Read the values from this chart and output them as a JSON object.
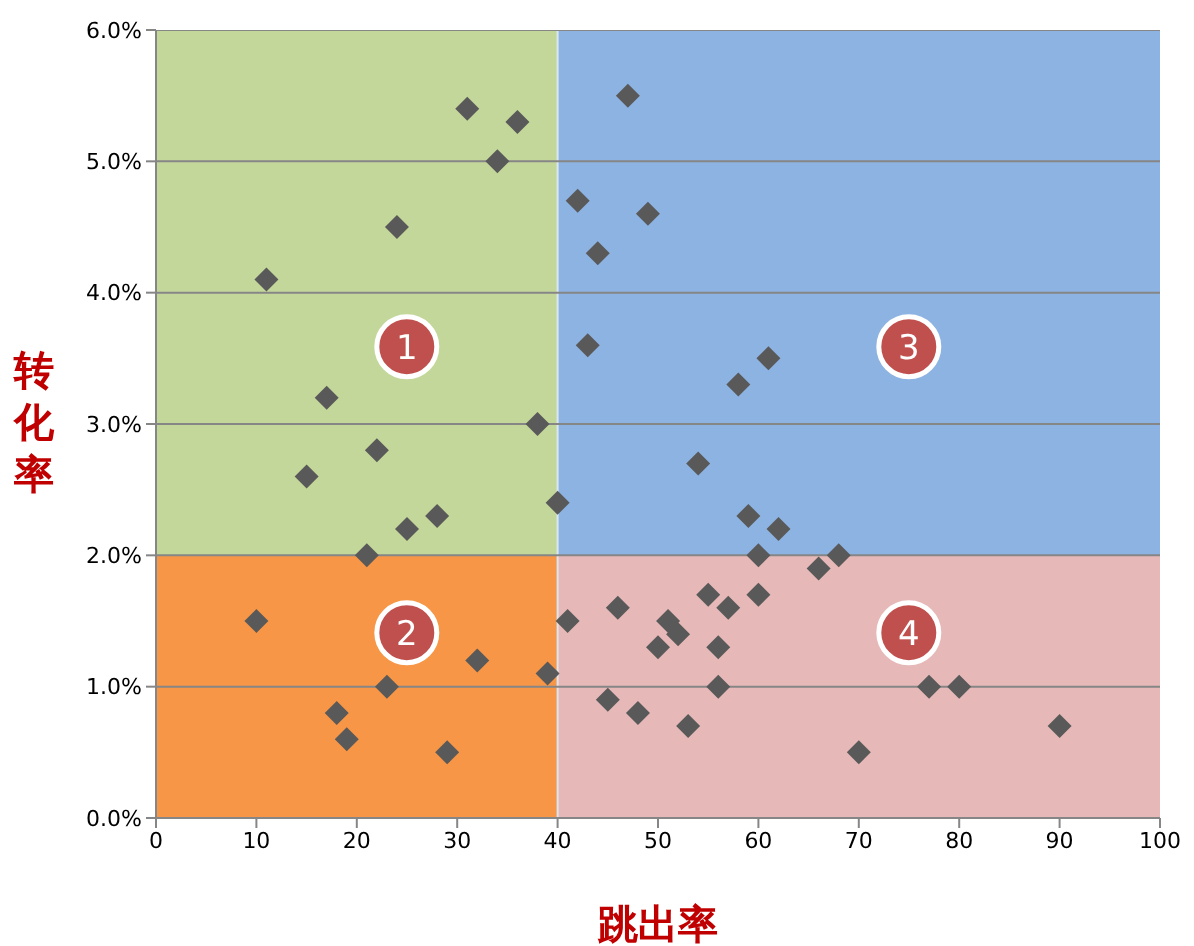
{
  "chart_data": {
    "type": "scatter",
    "xlabel": "跳出率",
    "ylabel": "转化率",
    "xlim": [
      0,
      100
    ],
    "xticks": [
      0,
      10,
      20,
      30,
      40,
      50,
      60,
      70,
      80,
      90,
      100
    ],
    "ylim": [
      0,
      6
    ],
    "yticks": [
      {
        "value": 0,
        "label": "0.0%"
      },
      {
        "value": 1,
        "label": "1.0%"
      },
      {
        "value": 2,
        "label": "2.0%"
      },
      {
        "value": 3,
        "label": "3.0%"
      },
      {
        "value": 4,
        "label": "4.0%"
      },
      {
        "value": 5,
        "label": "5.0%"
      },
      {
        "value": 6,
        "label": "6.0%"
      }
    ],
    "grid": "y",
    "legend": false,
    "marker": "diamond",
    "ref_lines": [
      {
        "axis": "x",
        "value": 40,
        "color": "#dce6f1"
      }
    ],
    "bands": [
      {
        "axis": "y",
        "from": 2,
        "to": 6
      }
    ],
    "annotations": [
      "1",
      "2",
      "3",
      "4"
    ],
    "series": [
      {
        "color": "#595959",
        "x": [
          31,
          36,
          34,
          24,
          11,
          17,
          22,
          15,
          38,
          28,
          25,
          40,
          21,
          10,
          18,
          19,
          23,
          29,
          32,
          39,
          47,
          42,
          49,
          44,
          43,
          58,
          61,
          54,
          59,
          62,
          60,
          68,
          66,
          41,
          46,
          55,
          57,
          50,
          52,
          51,
          56,
          56,
          53,
          45,
          48,
          60,
          70,
          77,
          80,
          90
        ],
        "values": [
          5.4,
          5.3,
          5.0,
          4.5,
          4.1,
          3.2,
          2.8,
          2.6,
          3.0,
          2.3,
          2.2,
          2.4,
          2.0,
          1.5,
          0.8,
          0.6,
          1.0,
          0.5,
          1.2,
          1.1,
          5.5,
          4.7,
          4.6,
          4.3,
          3.6,
          3.3,
          3.5,
          2.7,
          2.3,
          2.2,
          2.0,
          2.0,
          1.9,
          1.5,
          1.6,
          1.7,
          1.6,
          1.3,
          1.4,
          1.5,
          1.3,
          1.0,
          0.7,
          0.9,
          0.8,
          1.7,
          0.5,
          1.0,
          1.0,
          0.7
        ]
      }
    ]
  }
}
